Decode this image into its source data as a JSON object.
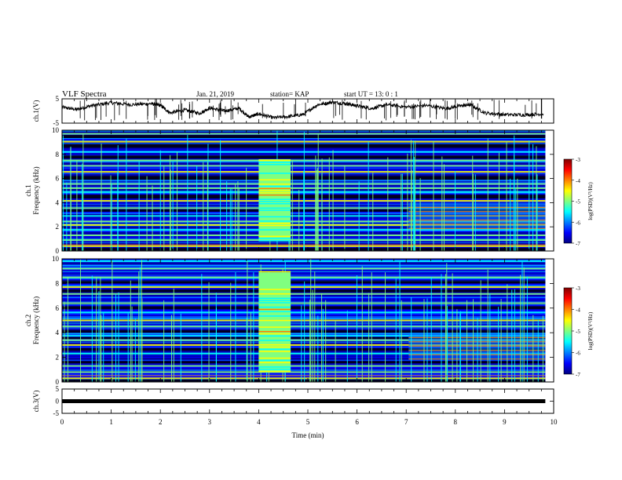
{
  "header": {
    "title": "VLF Spectra",
    "date": "Jan. 21, 2019",
    "station": "station= KAP",
    "start": "start  UT =  13: 0  : 1"
  },
  "colors": {
    "colormap": [
      "#000080",
      "#0000ff",
      "#0080ff",
      "#00ffff",
      "#80ff80",
      "#ffff00",
      "#ff8000",
      "#ff0000",
      "#800000"
    ],
    "trace": "#000000",
    "background": "#ffffff"
  },
  "chart_data": [
    {
      "type": "line",
      "ylabel": "ch.1(V)",
      "x_range": [
        0,
        10
      ],
      "ylim": [
        -5,
        5
      ],
      "yticks": [
        "5",
        "-5"
      ],
      "series": [
        {
          "x": [
            0,
            0.3,
            0.6,
            1.0,
            1.4,
            1.8,
            2.0,
            2.2,
            2.5,
            2.8,
            3.0,
            3.3,
            3.6,
            3.8,
            4.0,
            4.3,
            4.6,
            4.9,
            5.2,
            5.5,
            5.8,
            6.0,
            6.3,
            6.6,
            7.0,
            7.4,
            7.8,
            8.1,
            8.3,
            8.6,
            9.0,
            9.4,
            9.8
          ],
          "y": [
            1.5,
            0.6,
            2.2,
            3.4,
            2.6,
            3.0,
            2.3,
            -0.8,
            0.4,
            -1.0,
            1.2,
            0.0,
            1.1,
            -2.5,
            -1.2,
            -2.8,
            -2.3,
            -1.5,
            2.6,
            3.6,
            3.0,
            2.1,
            1.0,
            2.6,
            1.6,
            2.3,
            1.0,
            2.1,
            2.6,
            -0.8,
            -1.5,
            -1.6,
            -1.2
          ]
        }
      ]
    },
    {
      "type": "heatmap",
      "ylabel": "ch.1\nFrequency (kHz)",
      "x_range": [
        0,
        10
      ],
      "ylim": [
        0,
        10
      ],
      "yticks": [
        "0",
        "2",
        "4",
        "6",
        "8",
        "10"
      ],
      "colorbar": {
        "label": "log(PSD)(V²/Hz)",
        "range": [
          -7,
          -3
        ],
        "ticks": [
          "-3",
          "-4",
          "-5",
          "-6",
          "-7"
        ]
      },
      "features": {
        "data_end_min": 9.83,
        "burst_min": [
          4.0,
          4.65
        ],
        "burst_freq_khz": [
          0.8,
          7.6
        ],
        "level_shift_min": 7.05,
        "bright_lines_khz": [
          0.4,
          0.9,
          1.3,
          1.75,
          2.15,
          2.45,
          2.9,
          3.55,
          4.15,
          4.9,
          5.2,
          5.55,
          6.55,
          7.05,
          7.5,
          8.2,
          9.05,
          9.7
        ],
        "dark_bands_khz": [
          [
            0.0,
            0.25
          ],
          [
            3.25,
            3.45
          ],
          [
            4.35,
            4.65
          ],
          [
            5.9,
            6.2
          ],
          [
            7.65,
            7.9
          ],
          [
            8.55,
            8.85
          ],
          [
            9.35,
            9.6
          ]
        ]
      }
    },
    {
      "type": "heatmap",
      "ylabel": "ch.2\nFrequency (kHz)",
      "x_range": [
        0,
        10
      ],
      "ylim": [
        0,
        10
      ],
      "yticks": [
        "0",
        "2",
        "4",
        "6",
        "8",
        "10"
      ],
      "colorbar": {
        "label": "log(PSD)(V²/Hz)",
        "range": [
          -7,
          -3
        ],
        "ticks": [
          "-3",
          "-4",
          "-5",
          "-6",
          "-7"
        ]
      },
      "features": {
        "data_end_min": 9.83,
        "burst_min": [
          4.0,
          4.65
        ],
        "burst_freq_khz": [
          0.8,
          8.9
        ],
        "level_shift_min": 7.05,
        "bright_lines_khz": [
          0.3,
          0.8,
          1.3,
          2.3,
          3.0,
          3.4,
          3.75,
          4.5,
          5.0,
          5.65,
          6.4,
          7.15,
          7.7,
          8.5,
          9.2,
          9.8
        ],
        "dark_bands_khz": [
          [
            0.0,
            0.2
          ],
          [
            1.5,
            1.7
          ],
          [
            2.55,
            2.75
          ],
          [
            3.5,
            3.65
          ],
          [
            4.0,
            4.2
          ],
          [
            5.9,
            6.15
          ],
          [
            7.3,
            7.5
          ],
          [
            8.0,
            8.2
          ]
        ]
      }
    },
    {
      "type": "line",
      "ylabel": "ch.3(V)",
      "x_range": [
        0,
        10
      ],
      "ylim": [
        -5,
        5
      ],
      "yticks": [
        "5",
        "0",
        "-5"
      ],
      "series": [
        {
          "x": [
            0,
            9.83
          ],
          "y": [
            0,
            0
          ]
        }
      ]
    }
  ],
  "x_axis": {
    "label": "Time (min)",
    "range": [
      0,
      10
    ],
    "ticks": [
      "0",
      "1",
      "2",
      "3",
      "4",
      "5",
      "6",
      "7",
      "8",
      "9",
      "10"
    ]
  }
}
